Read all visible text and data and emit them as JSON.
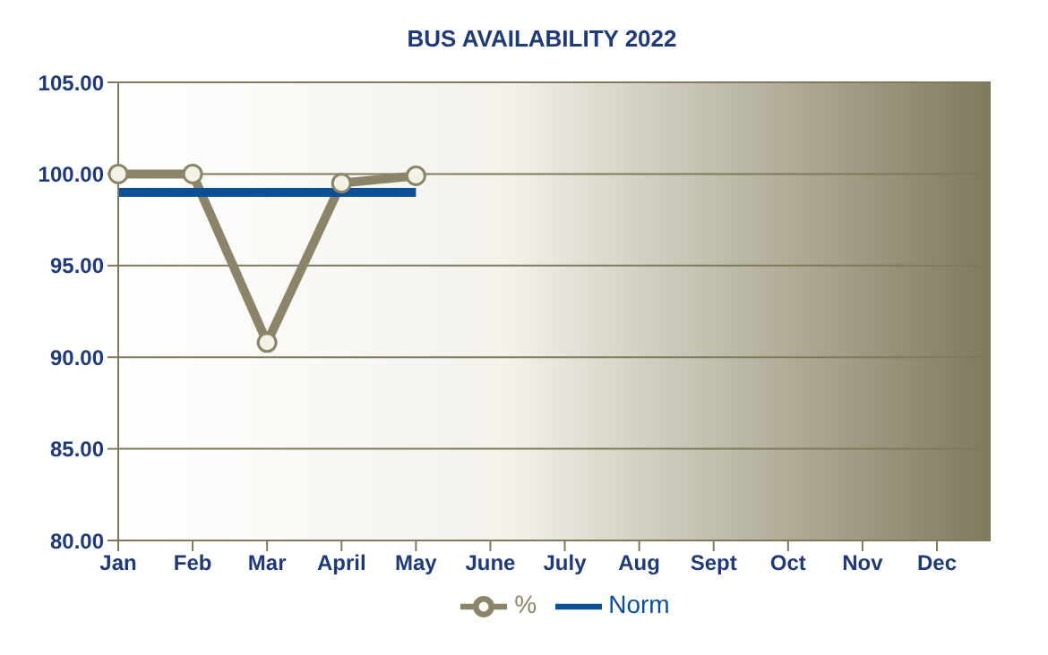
{
  "chart_data": {
    "type": "line",
    "title": "BUS AVAILABILITY 2022",
    "categories": [
      "Jan",
      "Feb",
      "Mar",
      "April",
      "May",
      "June",
      "July",
      "Aug",
      "Sept",
      "Oct",
      "Nov",
      "Dec"
    ],
    "series": [
      {
        "name": "%",
        "color": "#8c8468",
        "values": [
          100,
          100,
          90.8,
          99.5,
          99.9,
          null,
          null,
          null,
          null,
          null,
          null,
          null
        ],
        "marker": "circle"
      },
      {
        "name": "Norm",
        "color": "#0b4f96",
        "values": [
          99,
          99,
          99,
          99,
          99,
          null,
          null,
          null,
          null,
          null,
          null,
          null
        ],
        "marker": "none"
      }
    ],
    "ylim": [
      80,
      105
    ],
    "yticks": [
      {
        "value": 80,
        "label": "80.00"
      },
      {
        "value": 85,
        "label": "85.00"
      },
      {
        "value": 90,
        "label": "90.00"
      },
      {
        "value": 95,
        "label": "95.00"
      },
      {
        "value": 100,
        "label": "100.00"
      },
      {
        "value": 105,
        "label": "105.00"
      }
    ],
    "grid": "y",
    "legend": "bottom",
    "line_style": "solid"
  }
}
